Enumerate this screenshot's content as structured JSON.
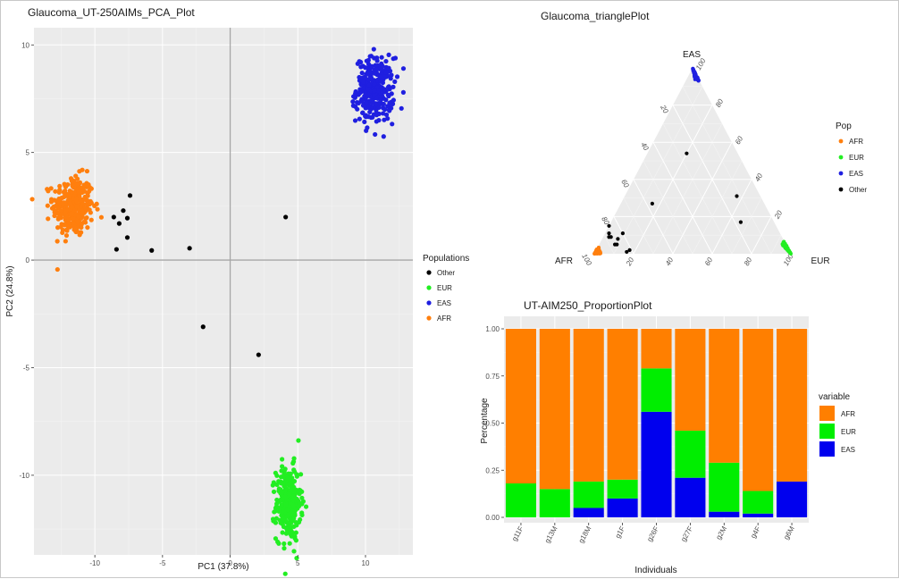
{
  "chart_data": [
    {
      "type": "scatter",
      "title": "Glaucoma_UT-250AIMs_PCA_Plot",
      "xlabel": "PC1 (37.8%)",
      "ylabel": "PC2 (24.8%)",
      "xlim": [
        -14.5,
        13.5
      ],
      "ylim": [
        -13.7,
        10.8
      ],
      "xticks": [
        -10,
        -5,
        0,
        5,
        10
      ],
      "yticks": [
        -10,
        -5,
        0,
        5,
        10
      ],
      "legend_title": "Populations",
      "legend": [
        "Other",
        "EUR",
        "EAS",
        "AFR"
      ],
      "reference_lines": {
        "x": 0,
        "y": 0
      },
      "clusters": [
        {
          "name": "AFR",
          "color": "#ff7f0e",
          "center": [
            -11.6,
            2.5
          ],
          "sd": [
            0.75,
            0.7
          ],
          "n": 320
        },
        {
          "name": "EAS",
          "color": "#1f1fe0",
          "center": [
            10.7,
            7.9
          ],
          "sd": [
            0.7,
            0.75
          ],
          "n": 300
        },
        {
          "name": "EUR",
          "color": "#22ee22",
          "center": [
            4.3,
            -11.3
          ],
          "sd": [
            0.45,
            0.85
          ],
          "n": 300
        }
      ],
      "series": [
        {
          "name": "Other",
          "color": "#000000",
          "points": [
            [
              -8.6,
              2.0
            ],
            [
              -8.2,
              1.7
            ],
            [
              -7.9,
              2.3
            ],
            [
              -7.6,
              1.95
            ],
            [
              -7.4,
              3.0
            ],
            [
              -7.6,
              1.05
            ],
            [
              -8.4,
              0.5
            ],
            [
              -5.8,
              0.45
            ],
            [
              -3.0,
              0.55
            ],
            [
              4.1,
              2.0
            ],
            [
              -2.0,
              -3.1
            ],
            [
              2.1,
              -4.4
            ]
          ]
        }
      ]
    },
    {
      "type": "ternary",
      "title": "Glaucoma_trianglePlot",
      "axes": [
        "AFR",
        "EUR",
        "EAS"
      ],
      "ticks": [
        20,
        40,
        60,
        80,
        100
      ],
      "legend_title": "Pop",
      "legend": [
        "AFR",
        "EUR",
        "EAS",
        "Other"
      ],
      "clusters": [
        {
          "name": "AFR",
          "color": "#ff7f0e",
          "center": [
            0.97,
            0.02,
            0.01
          ]
        },
        {
          "name": "EUR",
          "color": "#22ee22",
          "center": [
            0.01,
            0.98,
            0.01
          ]
        },
        {
          "name": "EAS",
          "color": "#1f1fe0",
          "center": [
            0.02,
            0.03,
            0.95
          ]
        }
      ],
      "series": [
        {
          "name": "Other",
          "color": "#000000",
          "points": [
            [
              0.83,
              0.16,
              0.01
            ],
            [
              0.81,
              0.17,
              0.02
            ],
            [
              0.87,
              0.08,
              0.05
            ],
            [
              0.86,
              0.09,
              0.05
            ],
            [
              0.84,
              0.08,
              0.08
            ],
            [
              0.87,
              0.04,
              0.09
            ],
            [
              0.88,
              0.03,
              0.09
            ],
            [
              0.8,
              0.09,
              0.11
            ],
            [
              0.87,
              0.02,
              0.11
            ],
            [
              0.85,
              0.0,
              0.15
            ],
            [
              0.57,
              0.16,
              0.27
            ],
            [
              0.26,
              0.2,
              0.54
            ],
            [
              0.12,
              0.57,
              0.31
            ],
            [
              0.17,
              0.66,
              0.17
            ]
          ]
        }
      ]
    },
    {
      "type": "bar",
      "stacked": true,
      "title": "UT-AIM250_ProportionPlot",
      "xlabel": "Individuals",
      "ylabel": "Percentage",
      "ylim": [
        0,
        1
      ],
      "yticks": [
        "0.00",
        "0.25",
        "0.50",
        "0.75",
        "1.00"
      ],
      "categories": [
        "g11F",
        "g13M",
        "g18M",
        "g1F",
        "g26F",
        "g27F",
        "g2M",
        "g4F",
        "g6M"
      ],
      "legend_title": "variable",
      "series": [
        {
          "name": "EAS",
          "color": "#0000ee",
          "values": [
            0.0,
            0.0,
            0.05,
            0.1,
            0.56,
            0.21,
            0.03,
            0.02,
            0.19
          ]
        },
        {
          "name": "EUR",
          "color": "#00ee00",
          "values": [
            0.18,
            0.15,
            0.14,
            0.1,
            0.23,
            0.25,
            0.26,
            0.12,
            0.0
          ]
        },
        {
          "name": "AFR",
          "color": "#ff7f00",
          "values": [
            0.82,
            0.85,
            0.81,
            0.8,
            0.21,
            0.54,
            0.71,
            0.86,
            0.81
          ]
        }
      ],
      "legend": [
        "AFR",
        "EUR",
        "EAS"
      ]
    }
  ]
}
